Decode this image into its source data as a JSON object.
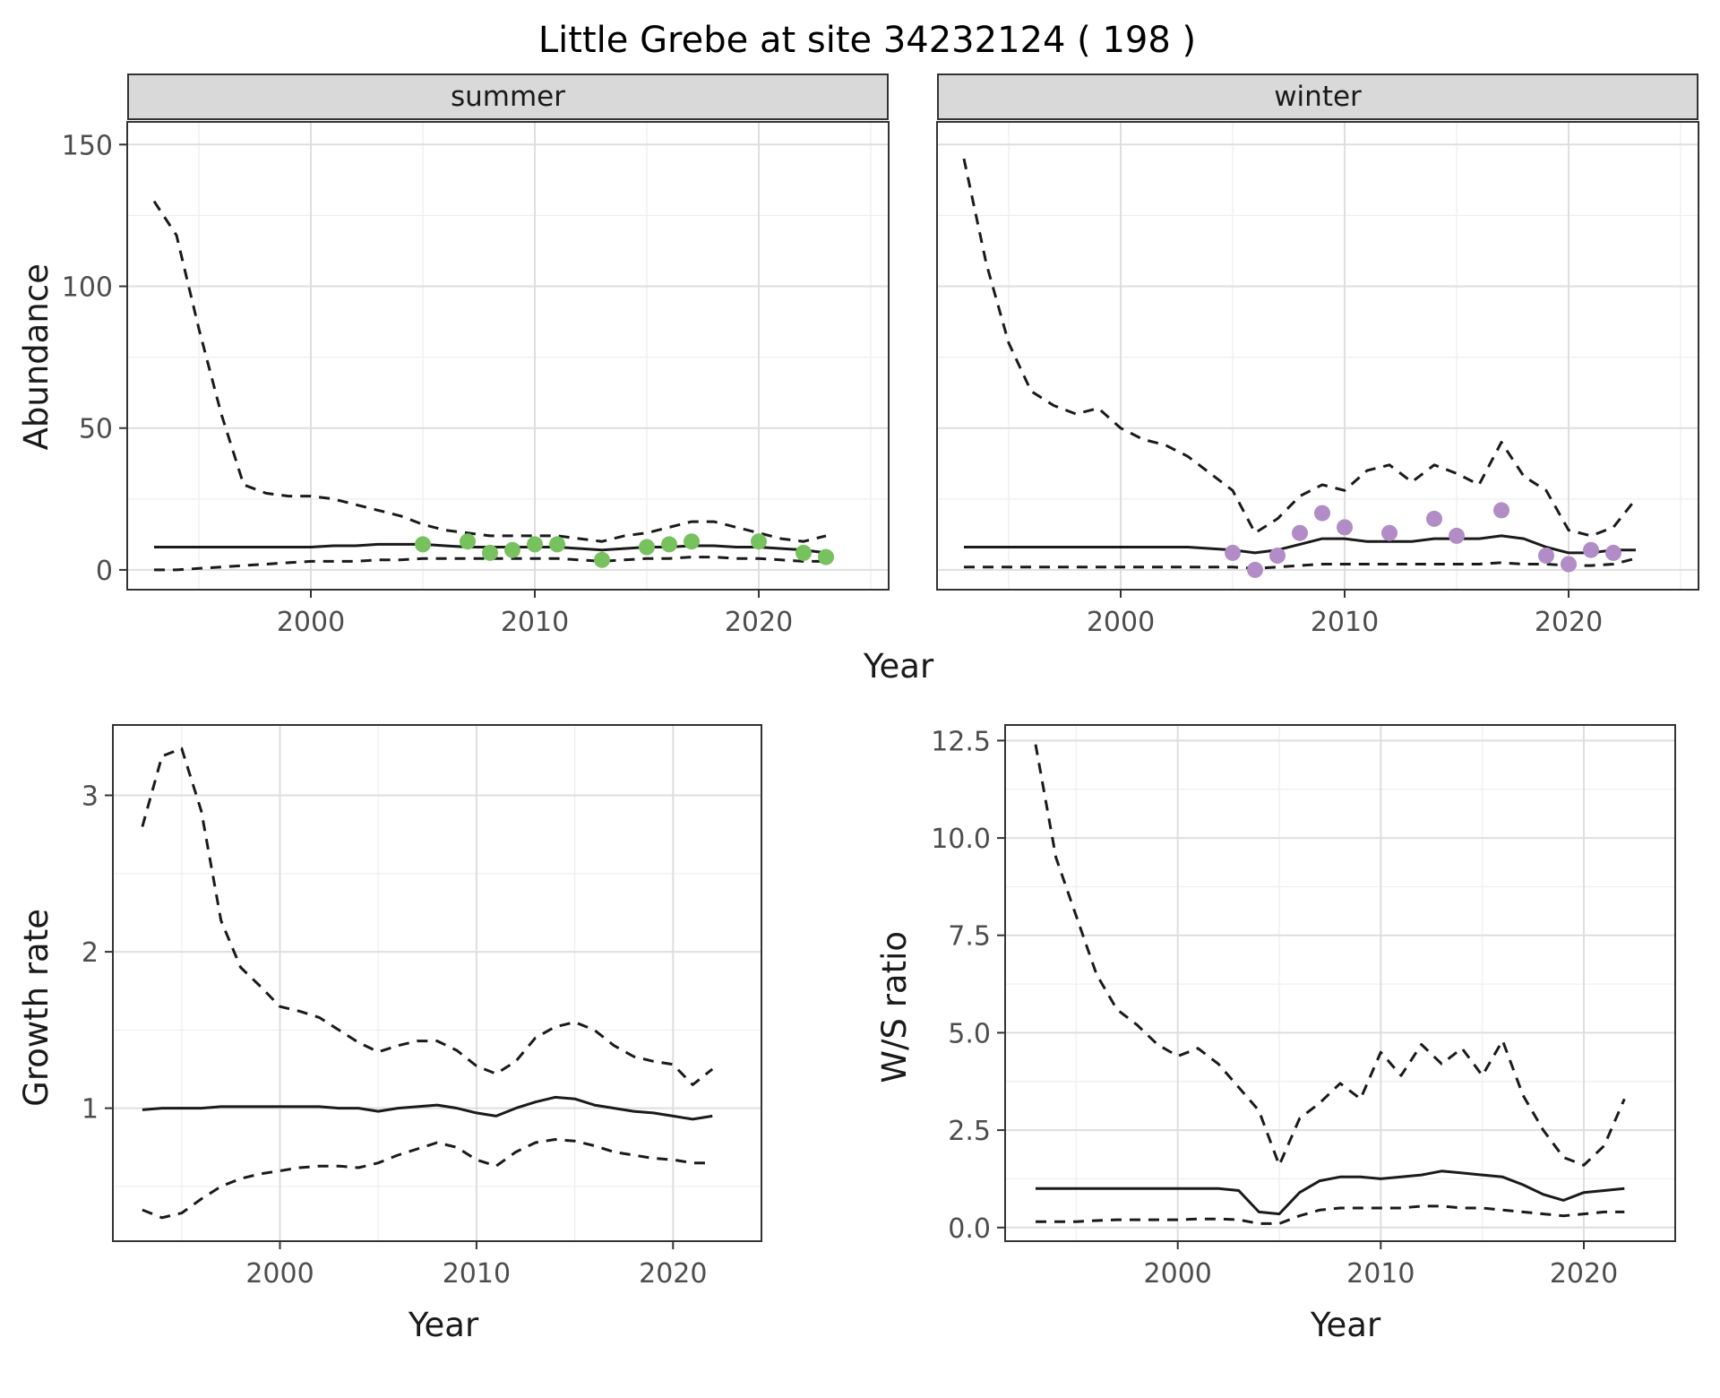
{
  "page": {
    "title": "Little Grebe at site 34232124 ( 198 )"
  },
  "facets": {
    "summer": "summer",
    "winter": "winter"
  },
  "labels": {
    "abundance": "Abundance",
    "year": "Year",
    "growth_rate": "Growth rate",
    "ws_ratio": "W/S ratio"
  },
  "colors": {
    "line": "#1a1a1a",
    "summer_points": "#77c15e",
    "winter_points": "#b18cc6",
    "strip_bg": "#d9d9d9",
    "grid_major": "#dedede",
    "grid_minor": "#efefef",
    "panel_border": "#333333"
  },
  "chart_data": [
    {
      "id": "abundance-summer",
      "type": "line",
      "facet_label": "summer",
      "xlabel": "Year",
      "ylabel": "Abundance",
      "xlim": [
        1991.8,
        2025.8
      ],
      "ylim": [
        -7,
        158
      ],
      "xticks": [
        2000,
        2010,
        2020
      ],
      "xtick_labels": [
        "2000",
        "2010",
        "2020"
      ],
      "yticks": [
        0,
        50,
        100,
        150
      ],
      "ytick_labels": [
        "0",
        "50",
        "100",
        "150"
      ],
      "x": [
        1993,
        1994,
        1995,
        1996,
        1997,
        1998,
        1999,
        2000,
        2001,
        2002,
        2003,
        2004,
        2005,
        2006,
        2007,
        2008,
        2009,
        2010,
        2011,
        2012,
        2013,
        2014,
        2015,
        2016,
        2017,
        2018,
        2019,
        2020,
        2021,
        2022,
        2023
      ],
      "series": [
        {
          "name": "upper_95ci",
          "style": "dashed",
          "values": [
            130,
            118,
            85,
            55,
            30,
            27,
            26,
            26,
            25,
            23,
            21,
            19,
            16,
            14,
            13,
            12,
            12,
            12,
            12,
            11,
            10,
            12,
            13,
            15,
            17,
            17,
            15,
            13,
            11,
            10,
            12
          ]
        },
        {
          "name": "median",
          "style": "solid",
          "values": [
            8,
            8,
            8,
            8,
            8,
            8,
            8,
            8,
            8.5,
            8.5,
            9,
            9,
            9,
            8.5,
            8,
            8,
            8,
            8,
            8,
            7.5,
            7,
            7.5,
            8,
            8,
            8.5,
            8.5,
            8,
            8,
            7.5,
            7,
            6
          ]
        },
        {
          "name": "lower_95ci",
          "style": "dashed",
          "values": [
            0,
            0,
            0.5,
            1,
            1.5,
            2,
            2.5,
            3,
            3,
            3,
            3.5,
            3.5,
            4,
            4,
            4,
            4,
            4,
            4,
            4,
            3.5,
            3,
            3.5,
            4,
            4,
            4.5,
            4.5,
            4,
            4,
            3.5,
            3,
            3
          ]
        }
      ],
      "points": {
        "name": "observed_counts_summer",
        "color": "#77c15e",
        "x": [
          2005,
          2007,
          2008,
          2009,
          2010,
          2011,
          2013,
          2015,
          2016,
          2017,
          2020,
          2022,
          2023
        ],
        "y": [
          9,
          10,
          6,
          7,
          9,
          9,
          3.5,
          8,
          9,
          10,
          10,
          6,
          4.5
        ]
      }
    },
    {
      "id": "abundance-winter",
      "type": "line",
      "facet_label": "winter",
      "xlabel": "Year",
      "ylabel": "Abundance",
      "xlim": [
        1991.8,
        2025.8
      ],
      "ylim": [
        -7,
        158
      ],
      "xticks": [
        2000,
        2010,
        2020
      ],
      "xtick_labels": [
        "2000",
        "2010",
        "2020"
      ],
      "yticks": [
        0,
        50,
        100,
        150
      ],
      "ytick_labels": [
        "0",
        "50",
        "100",
        "150"
      ],
      "x": [
        1993,
        1994,
        1995,
        1996,
        1997,
        1998,
        1999,
        2000,
        2001,
        2002,
        2003,
        2004,
        2005,
        2006,
        2007,
        2008,
        2009,
        2010,
        2011,
        2012,
        2013,
        2014,
        2015,
        2016,
        2017,
        2018,
        2019,
        2020,
        2021,
        2022,
        2023
      ],
      "series": [
        {
          "name": "upper_95ci",
          "style": "dashed",
          "values": [
            145,
            108,
            80,
            63,
            58,
            55,
            57,
            50,
            46,
            44,
            40,
            34,
            28,
            13,
            18,
            26,
            30,
            28,
            35,
            37,
            31,
            37,
            34,
            30,
            45,
            33,
            28,
            14,
            12,
            15,
            25
          ]
        },
        {
          "name": "median",
          "style": "solid",
          "values": [
            8,
            8,
            8,
            8,
            8,
            8,
            8,
            8,
            8,
            8,
            8,
            7.5,
            7,
            6,
            7,
            9,
            11,
            11,
            10,
            10,
            10,
            11,
            11,
            11,
            12,
            11,
            8,
            6,
            6,
            7,
            7
          ]
        },
        {
          "name": "lower_95ci",
          "style": "dashed",
          "values": [
            1,
            1,
            1,
            1,
            1,
            1,
            1,
            1,
            1,
            1,
            1,
            1,
            1,
            0.5,
            1,
            1.5,
            2,
            2,
            2,
            2,
            2,
            2,
            2,
            2,
            2.5,
            2,
            2,
            1.5,
            1.5,
            2,
            4
          ]
        }
      ],
      "points": {
        "name": "observed_counts_winter",
        "color": "#b18cc6",
        "x": [
          2005,
          2006,
          2007,
          2008,
          2009,
          2010,
          2012,
          2014,
          2015,
          2017,
          2019,
          2020,
          2021,
          2022
        ],
        "y": [
          6,
          0,
          5,
          13,
          20,
          15,
          13,
          18,
          12,
          21,
          5,
          2,
          7,
          6
        ]
      }
    },
    {
      "id": "growth-rate",
      "type": "line",
      "xlabel": "Year",
      "ylabel": "Growth rate",
      "xlim": [
        1991.5,
        2024.5
      ],
      "ylim": [
        0.15,
        3.45
      ],
      "xticks": [
        2000,
        2010,
        2020
      ],
      "xtick_labels": [
        "2000",
        "2010",
        "2020"
      ],
      "yticks": [
        1,
        2,
        3
      ],
      "ytick_labels": [
        "1",
        "2",
        "3"
      ],
      "x": [
        1993,
        1994,
        1995,
        1996,
        1997,
        1998,
        1999,
        2000,
        2001,
        2002,
        2003,
        2004,
        2005,
        2006,
        2007,
        2008,
        2009,
        2010,
        2011,
        2012,
        2013,
        2014,
        2015,
        2016,
        2017,
        2018,
        2019,
        2020,
        2021,
        2022
      ],
      "series": [
        {
          "name": "upper_95ci",
          "style": "dashed",
          "values": [
            2.8,
            3.25,
            3.3,
            2.9,
            2.2,
            1.9,
            1.78,
            1.65,
            1.62,
            1.58,
            1.5,
            1.42,
            1.36,
            1.4,
            1.43,
            1.43,
            1.37,
            1.27,
            1.22,
            1.3,
            1.45,
            1.52,
            1.55,
            1.5,
            1.4,
            1.33,
            1.3,
            1.28,
            1.15,
            1.25
          ]
        },
        {
          "name": "median",
          "style": "solid",
          "values": [
            0.99,
            1.0,
            1.0,
            1.0,
            1.01,
            1.01,
            1.01,
            1.01,
            1.01,
            1.01,
            1.0,
            1.0,
            0.98,
            1.0,
            1.01,
            1.02,
            1.0,
            0.97,
            0.95,
            1.0,
            1.04,
            1.07,
            1.06,
            1.02,
            1.0,
            0.98,
            0.97,
            0.95,
            0.93,
            0.95
          ]
        },
        {
          "name": "lower_95ci",
          "style": "dashed",
          "values": [
            0.35,
            0.3,
            0.33,
            0.42,
            0.5,
            0.55,
            0.58,
            0.6,
            0.62,
            0.63,
            0.63,
            0.62,
            0.65,
            0.7,
            0.74,
            0.78,
            0.75,
            0.67,
            0.63,
            0.72,
            0.78,
            0.8,
            0.79,
            0.76,
            0.72,
            0.7,
            0.68,
            0.67,
            0.65,
            0.65
          ]
        }
      ]
    },
    {
      "id": "ws-ratio",
      "type": "line",
      "xlabel": "Year",
      "ylabel": "W/S ratio",
      "xlim": [
        1991.5,
        2024.5
      ],
      "ylim": [
        -0.35,
        12.9
      ],
      "xticks": [
        2000,
        2010,
        2020
      ],
      "xtick_labels": [
        "2000",
        "2010",
        "2020"
      ],
      "yticks": [
        0,
        2.5,
        5,
        7.5,
        10,
        12.5
      ],
      "ytick_labels": [
        "0.0",
        "2.5",
        "5.0",
        "7.5",
        "10.0",
        "12.5"
      ],
      "x": [
        1993,
        1994,
        1995,
        1996,
        1997,
        1998,
        1999,
        2000,
        2001,
        2002,
        2003,
        2004,
        2005,
        2006,
        2007,
        2008,
        2009,
        2010,
        2011,
        2012,
        2013,
        2014,
        2015,
        2016,
        2017,
        2018,
        2019,
        2020,
        2021,
        2022
      ],
      "series": [
        {
          "name": "upper_95ci",
          "style": "dashed",
          "values": [
            12.4,
            9.5,
            8.0,
            6.5,
            5.6,
            5.2,
            4.7,
            4.4,
            4.6,
            4.2,
            3.6,
            3.0,
            1.6,
            2.8,
            3.2,
            3.7,
            3.3,
            4.5,
            3.9,
            4.7,
            4.2,
            4.6,
            3.9,
            4.8,
            3.4,
            2.5,
            1.8,
            1.6,
            2.1,
            3.3
          ]
        },
        {
          "name": "median",
          "style": "solid",
          "values": [
            1.0,
            1.0,
            1.0,
            1.0,
            1.0,
            1.0,
            1.0,
            1.0,
            1.0,
            1.0,
            0.95,
            0.4,
            0.35,
            0.9,
            1.2,
            1.3,
            1.3,
            1.25,
            1.3,
            1.35,
            1.45,
            1.4,
            1.35,
            1.3,
            1.1,
            0.85,
            0.7,
            0.9,
            0.95,
            1.0
          ]
        },
        {
          "name": "lower_95ci",
          "style": "dashed",
          "values": [
            0.15,
            0.15,
            0.15,
            0.18,
            0.2,
            0.2,
            0.2,
            0.2,
            0.22,
            0.22,
            0.2,
            0.1,
            0.1,
            0.3,
            0.45,
            0.5,
            0.5,
            0.5,
            0.5,
            0.55,
            0.55,
            0.5,
            0.5,
            0.45,
            0.4,
            0.35,
            0.3,
            0.35,
            0.4,
            0.4
          ]
        }
      ]
    }
  ]
}
